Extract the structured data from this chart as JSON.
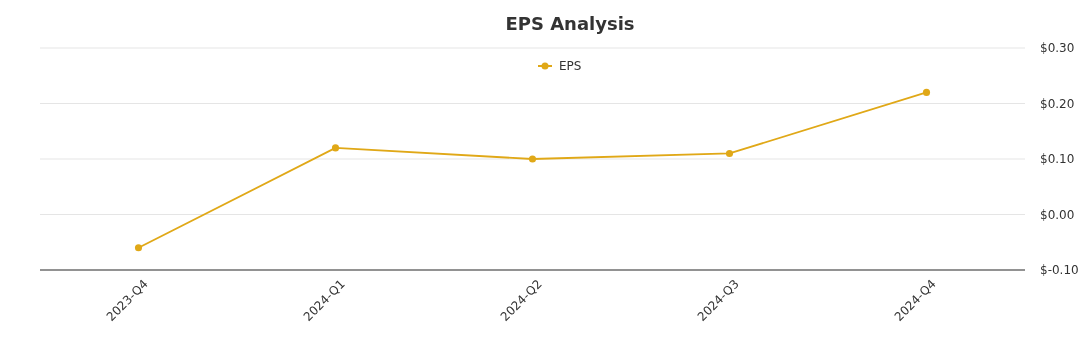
{
  "chart_data": {
    "type": "line",
    "title": "EPS Analysis",
    "categories": [
      "2023-Q4",
      "2024-Q1",
      "2024-Q2",
      "2024-Q3",
      "2024-Q4"
    ],
    "series": [
      {
        "name": "EPS",
        "color": "#e0a817",
        "values": [
          -0.06,
          0.12,
          0.1,
          0.11,
          0.22
        ]
      }
    ],
    "ylim": [
      -0.1,
      0.3
    ],
    "yticks": [
      {
        "value": -0.1,
        "label": "$-0.10"
      },
      {
        "value": 0,
        "label": "$0.00"
      },
      {
        "value": 0.1,
        "label": "$0.10"
      },
      {
        "value": 0.2,
        "label": "$0.20"
      },
      {
        "value": 0.3,
        "label": "$0.30"
      }
    ],
    "grid": "y",
    "legend": "top",
    "marker": "circle",
    "line_style": "solid"
  }
}
